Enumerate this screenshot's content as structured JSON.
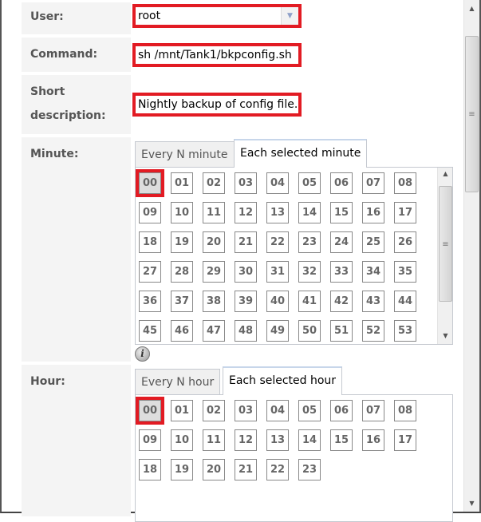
{
  "form": {
    "user": {
      "label": "User:",
      "value": "root"
    },
    "command": {
      "label": "Command:",
      "value": "sh /mnt/Tank1/bkpconfig.sh"
    },
    "description": {
      "label_line1": "Short",
      "label_line2": "description:",
      "value": "Nightly backup of config file."
    },
    "minute": {
      "label": "Minute:",
      "tabs": [
        "Every N minute",
        "Each selected minute"
      ],
      "active_tab": 1,
      "selected": [
        "00"
      ],
      "values": [
        "00",
        "01",
        "02",
        "03",
        "04",
        "05",
        "06",
        "07",
        "08",
        "09",
        "10",
        "11",
        "12",
        "13",
        "14",
        "15",
        "16",
        "17",
        "18",
        "19",
        "20",
        "21",
        "22",
        "23",
        "24",
        "25",
        "26",
        "27",
        "28",
        "29",
        "30",
        "31",
        "32",
        "33",
        "34",
        "35",
        "36",
        "37",
        "38",
        "39",
        "40",
        "41",
        "42",
        "43",
        "44",
        "45",
        "46",
        "47",
        "48",
        "49",
        "50",
        "51",
        "52",
        "53"
      ]
    },
    "hour": {
      "label": "Hour:",
      "tabs": [
        "Every N hour",
        "Each selected hour"
      ],
      "active_tab": 1,
      "selected": [
        "00"
      ],
      "values": [
        "00",
        "01",
        "02",
        "03",
        "04",
        "05",
        "06",
        "07",
        "08",
        "09",
        "10",
        "11",
        "12",
        "13",
        "14",
        "15",
        "16",
        "17",
        "18",
        "19",
        "20",
        "21",
        "22",
        "23"
      ]
    }
  },
  "colors": {
    "highlight": "#e21b23"
  }
}
